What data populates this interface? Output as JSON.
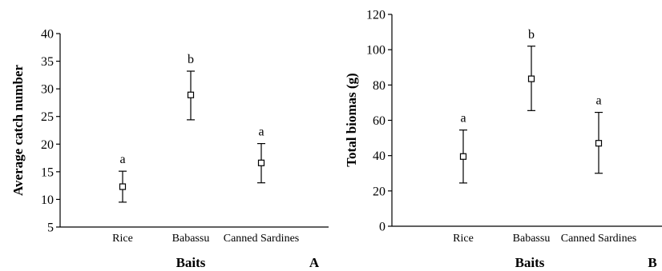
{
  "chart_data": [
    {
      "type": "scatter",
      "panel_label": "A",
      "xlabel": "Baits",
      "ylabel": "Average catch number",
      "ylim": [
        5,
        40
      ],
      "yticks": [
        5,
        10,
        15,
        20,
        25,
        30,
        35,
        40
      ],
      "categories": [
        "Rice",
        "Babassu",
        "Canned Sardines"
      ],
      "series": [
        {
          "values": [
            12.3,
            28.9,
            16.6
          ],
          "error_low": [
            9.5,
            24.4,
            13.0
          ],
          "error_high": [
            15.1,
            33.2,
            20.1
          ],
          "labels": [
            "a",
            "b",
            "a"
          ]
        }
      ]
    },
    {
      "type": "scatter",
      "panel_label": "B",
      "xlabel": "Baits",
      "ylabel": "Total biomas (g)",
      "ylim": [
        0,
        120
      ],
      "yticks": [
        0,
        20,
        40,
        60,
        80,
        100,
        120
      ],
      "categories": [
        "Rice",
        "Babassu",
        "Canned Sardines"
      ],
      "series": [
        {
          "values": [
            39.5,
            83.5,
            47.0
          ],
          "error_low": [
            24.5,
            65.5,
            30.0
          ],
          "error_high": [
            54.5,
            102.0,
            64.5
          ],
          "labels": [
            "a",
            "b",
            "a"
          ]
        }
      ]
    }
  ]
}
